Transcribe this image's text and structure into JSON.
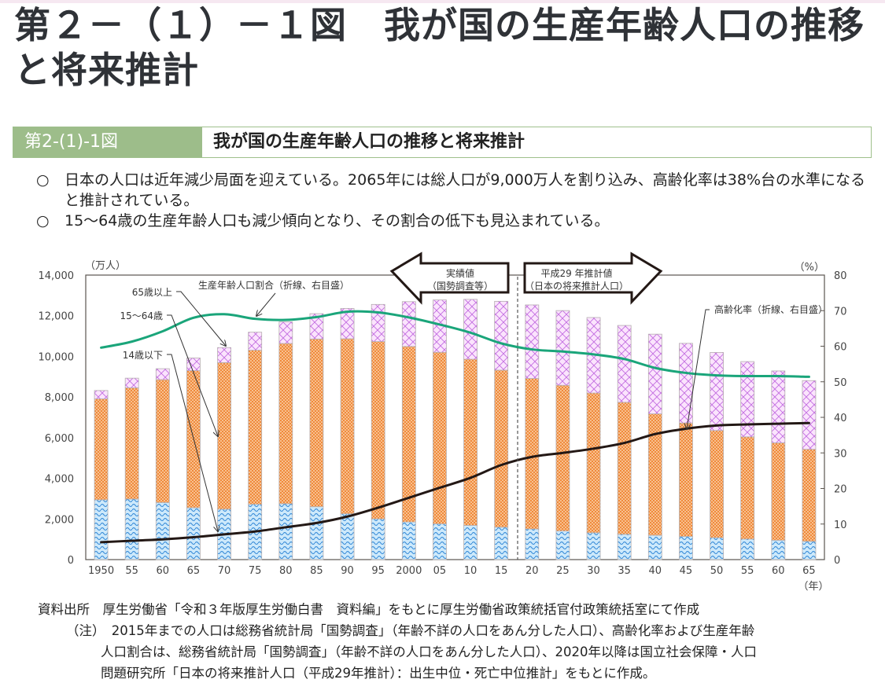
{
  "page": {
    "main_title": "第２－（１）－１図　我が国の生産年齢人口の推移と将来推計",
    "figure_number": "第2-(1)-1図",
    "figure_title": "我が国の生産年齢人口の推移と将来推計",
    "bullets": [
      {
        "mark": "○",
        "text": "日本の人口は近年減少局面を迎えている。2065年には総人口が9,000万人を割り込み、高齢化率は38%台の水準になると推計されている。"
      },
      {
        "mark": "○",
        "text": "15～64歳の生産年齢人口も減少傾向となり、その割合の低下も見込まれている。"
      }
    ],
    "notes": {
      "source": "資料出所　厚生労働省「令和３年版厚生労働白書　資料編」をもとに厚生労働省政策統括官付政策統括室にて作成",
      "note_line1": "（注）　2015年までの人口は総務省統計局「国勢調査」（年齢不詳の人口をあん分した人口）、高齢化率および生産年齢",
      "note_line2": "人口割合は、総務省統計局「国勢調査」（年齢不詳の人口をあん分した人口）、2020年以降は国立社会保障・人口",
      "note_line3": "問題研究所「日本の将来推計人口（平成29年推計）：出生中位・死亡中位推計」をもとに作成。"
    }
  },
  "chart_data": {
    "type": "bar",
    "subtype": "stacked-bar-with-lines",
    "title": "我が国の生産年齢人口の推移と将来推計",
    "ylabel_left": "（万人）",
    "ylabel_right": "（%）",
    "xlabel": "（年）",
    "ylim_left": [
      0,
      14000
    ],
    "ylim_right": [
      0,
      80
    ],
    "yticks_left": [
      "0",
      "2,000",
      "4,000",
      "6,000",
      "8,000",
      "10,000",
      "12,000",
      "14,000"
    ],
    "yticks_right": [
      "0",
      "10",
      "20",
      "30",
      "40",
      "50",
      "60",
      "70",
      "80"
    ],
    "categories": [
      "1950",
      "55",
      "60",
      "65",
      "70",
      "75",
      "80",
      "85",
      "90",
      "95",
      "2000",
      "05",
      "10",
      "15",
      "20",
      "25",
      "30",
      "35",
      "40",
      "45",
      "50",
      "55",
      "60",
      "65"
    ],
    "series": [
      {
        "name": "14歳以下",
        "kind": "bar",
        "axis": "left",
        "color": "#7fc0ee",
        "values": [
          2943,
          2980,
          2807,
          2553,
          2482,
          2722,
          2751,
          2603,
          2254,
          2003,
          1851,
          1759,
          1684,
          1595,
          1507,
          1407,
          1321,
          1246,
          1194,
          1138,
          1077,
          1012,
          951,
          898
        ]
      },
      {
        "name": "15～64歳",
        "kind": "bar",
        "axis": "left",
        "color": "#f5a35f",
        "values": [
          4966,
          5473,
          6047,
          6744,
          7212,
          7581,
          7883,
          8251,
          8614,
          8726,
          8638,
          8442,
          8174,
          7728,
          7406,
          7170,
          6875,
          6494,
          5978,
          5584,
          5275,
          5028,
          4793,
          4529
        ]
      },
      {
        "name": "65歳以上",
        "kind": "bar",
        "axis": "left",
        "color": "#f2c9f7",
        "values": [
          411,
          475,
          540,
          624,
          739,
          887,
          1065,
          1247,
          1493,
          1828,
          2204,
          2576,
          2948,
          3387,
          3619,
          3677,
          3716,
          3782,
          3921,
          3919,
          3841,
          3704,
          3540,
          3381
        ]
      },
      {
        "name": "生産年齢人口割合（折線、右目盛）",
        "kind": "line",
        "axis": "right",
        "color": "#1aa57a",
        "values": [
          59.6,
          61.3,
          64.2,
          68.0,
          69.0,
          67.7,
          67.4,
          68.2,
          69.7,
          69.5,
          68.1,
          66.1,
          63.8,
          60.8,
          59.1,
          58.5,
          57.7,
          56.4,
          53.9,
          52.5,
          51.8,
          51.6,
          51.6,
          51.4
        ]
      },
      {
        "name": "高齢化率（折線、右目盛）",
        "kind": "line",
        "axis": "right",
        "color": "#231815",
        "values": [
          4.9,
          5.3,
          5.7,
          6.3,
          7.1,
          7.9,
          9.1,
          10.3,
          12.1,
          14.6,
          17.4,
          20.2,
          23.0,
          26.6,
          28.9,
          30.0,
          31.2,
          32.8,
          35.3,
          36.8,
          37.7,
          38.0,
          38.2,
          38.4
        ]
      }
    ],
    "annotations": {
      "label_65plus": "65歳以上",
      "label_15_64": "15～64歳",
      "label_14under": "14歳以下",
      "label_working_ratio": "生産年齢人口割合（折線、右目盛）",
      "label_aging_rate": "高齢化率（折線、右目盛）",
      "arrow_left_line1": "実績値",
      "arrow_left_line2": "（国勢調査等）",
      "arrow_right_line1": "平成29 年推計値",
      "arrow_right_line2": "（日本の将来推計人口）",
      "divider_between": [
        "15",
        "20"
      ]
    },
    "grid": false,
    "legend": "inline-annotations"
  }
}
